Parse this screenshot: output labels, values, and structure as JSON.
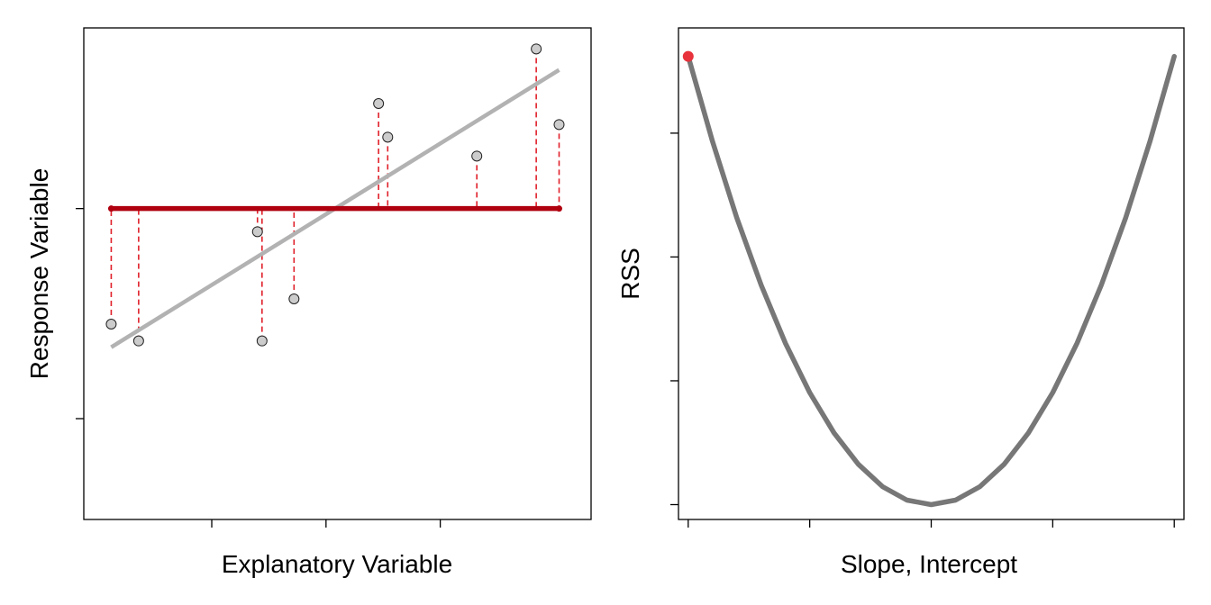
{
  "chart_data": [
    {
      "type": "scatter",
      "xlabel": "Explanatory Variable",
      "ylabel": "Response Variable",
      "x_ticks": 3,
      "y_ticks": 3,
      "xlim": [
        -0.3,
        10.8
      ],
      "ylim": [
        -0.9,
        10.8
      ],
      "points": [
        {
          "x": 0.3,
          "y": 3.75
        },
        {
          "x": 0.9,
          "y": 3.35
        },
        {
          "x": 3.5,
          "y": 5.95
        },
        {
          "x": 3.6,
          "y": 3.35
        },
        {
          "x": 4.3,
          "y": 4.35
        },
        {
          "x": 6.15,
          "y": 9.0
        },
        {
          "x": 6.35,
          "y": 8.2
        },
        {
          "x": 8.3,
          "y": 7.75
        },
        {
          "x": 9.6,
          "y": 10.3
        },
        {
          "x": 10.1,
          "y": 8.5
        }
      ],
      "fitted_line": {
        "x": [
          0.3,
          10.1
        ],
        "y": [
          3.2,
          9.8
        ],
        "color": "#b2b2b2"
      },
      "candidate_line": {
        "x": [
          0.3,
          10.1
        ],
        "y": [
          6.5,
          6.5
        ],
        "color": "#b0000f"
      },
      "residual_color": "#e0202a",
      "point_fill": "#cccccc"
    },
    {
      "type": "line",
      "xlabel": "Slope, Intercept",
      "ylabel": "RSS",
      "x_ticks": 5,
      "y_ticks": 4,
      "xlim": [
        -0.08,
        4.08
      ],
      "ylim": [
        -0.12,
        3.85
      ],
      "curve": {
        "vertex_x": 2.0,
        "min": 0.0,
        "max": 3.62,
        "color": "#777777"
      },
      "current": {
        "x": 0.0,
        "y": 3.62,
        "color": "#e8323c"
      }
    }
  ]
}
